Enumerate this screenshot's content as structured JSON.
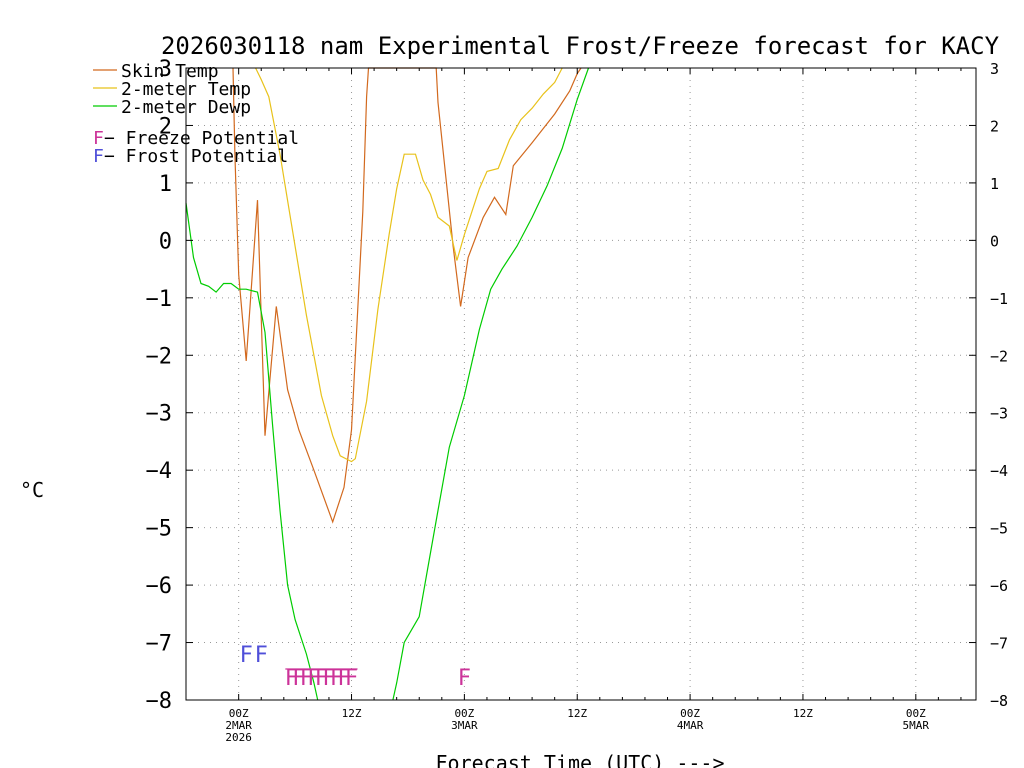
{
  "chart_data": {
    "type": "line",
    "title": "2026030118 nam Experimental Frost/Freeze forecast for KACY",
    "xlabel": "Forecast Time (UTC) --->",
    "ylabel": "°C",
    "xlim": [
      -7,
      98
    ],
    "ylim": [
      -8,
      3
    ],
    "yticks": [
      3,
      2,
      1,
      0,
      -1,
      -2,
      -3,
      -4,
      -5,
      -6,
      -7,
      -8
    ],
    "ytick_labels": [
      "3",
      "2",
      "1",
      "0",
      "−1",
      "−2",
      "−3",
      "−4",
      "−5",
      "−6",
      "−7",
      "−8"
    ],
    "xticks": [
      {
        "h": 0,
        "lines": [
          "00Z",
          "2MAR",
          "2026"
        ]
      },
      {
        "h": 15,
        "lines": [
          "12Z"
        ]
      },
      {
        "h": 30,
        "lines": [
          "00Z",
          "3MAR"
        ]
      },
      {
        "h": 45,
        "lines": [
          "12Z"
        ]
      },
      {
        "h": 60,
        "lines": [
          "00Z",
          "4MAR"
        ]
      },
      {
        "h": 75,
        "lines": [
          "12Z"
        ]
      },
      {
        "h": 90,
        "lines": [
          "00Z",
          "5MAR"
        ]
      }
    ],
    "grid": true,
    "series": [
      {
        "name": "Skin Temp",
        "color": "#d2691e",
        "points": [
          [
            -0.75,
            3
          ],
          [
            -0.5,
            1.5
          ],
          [
            0,
            -0.6
          ],
          [
            1,
            -2.1
          ],
          [
            2.5,
            0.7
          ],
          [
            3.5,
            -3.4
          ],
          [
            5,
            -1.15
          ],
          [
            6.5,
            -2.6
          ],
          [
            8,
            -3.3
          ],
          [
            10,
            -4
          ],
          [
            12.5,
            -4.9
          ],
          [
            14,
            -4.3
          ],
          [
            15,
            -3.3
          ],
          [
            16.5,
            0.5
          ],
          [
            17,
            2.5
          ],
          [
            17.25,
            3
          ],
          [
            26.25,
            3
          ],
          [
            26.5,
            2.4
          ],
          [
            28.5,
            -0.1
          ],
          [
            29.5,
            -1.15
          ],
          [
            30.5,
            -0.3
          ],
          [
            32.5,
            0.4
          ],
          [
            34,
            0.75
          ],
          [
            35.5,
            0.45
          ],
          [
            36.5,
            1.3
          ],
          [
            39,
            1.7
          ],
          [
            42,
            2.2
          ],
          [
            44,
            2.6
          ],
          [
            45,
            2.9
          ],
          [
            45.5,
            3
          ]
        ]
      },
      {
        "name": "2-meter Temp",
        "color": "#e8c21b",
        "points": [
          [
            2.25,
            3
          ],
          [
            3,
            2.8
          ],
          [
            4,
            2.5
          ],
          [
            5.5,
            1.5
          ],
          [
            7,
            0.3
          ],
          [
            9,
            -1.3
          ],
          [
            11,
            -2.7
          ],
          [
            12.5,
            -3.4
          ],
          [
            13.5,
            -3.75
          ],
          [
            15,
            -3.85
          ],
          [
            15.5,
            -3.8
          ],
          [
            17,
            -2.8
          ],
          [
            18.5,
            -1.2
          ],
          [
            20,
            0.1
          ],
          [
            21,
            0.9
          ],
          [
            22,
            1.5
          ],
          [
            23.5,
            1.5
          ],
          [
            24.5,
            1.05
          ],
          [
            25.5,
            0.8
          ],
          [
            26.5,
            0.4
          ],
          [
            28,
            0.25
          ],
          [
            29,
            -0.35
          ],
          [
            30,
            0.1
          ],
          [
            32,
            0.9
          ],
          [
            33,
            1.2
          ],
          [
            34.5,
            1.25
          ],
          [
            36,
            1.75
          ],
          [
            37.5,
            2.1
          ],
          [
            39,
            2.3
          ],
          [
            40.5,
            2.55
          ],
          [
            42,
            2.75
          ],
          [
            43,
            3
          ]
        ]
      },
      {
        "name": "2-meter Dewp",
        "color": "#00cc00",
        "points": [
          [
            -7,
            0.65
          ],
          [
            -6,
            -0.3
          ],
          [
            -5,
            -0.75
          ],
          [
            -4,
            -0.8
          ],
          [
            -3,
            -0.9
          ],
          [
            -2,
            -0.75
          ],
          [
            -1,
            -0.75
          ],
          [
            0,
            -0.85
          ],
          [
            1,
            -0.85
          ],
          [
            2.5,
            -0.9
          ],
          [
            3.5,
            -1.6
          ],
          [
            4.5,
            -3.2
          ],
          [
            5.5,
            -4.7
          ],
          [
            6.5,
            -6
          ],
          [
            7.5,
            -6.6
          ],
          [
            9,
            -7.2
          ],
          [
            10,
            -7.7
          ],
          [
            10.5,
            -8
          ]
        ]
      },
      {
        "name": "2-meter Dewp",
        "color": "#00cc00",
        "points": [
          [
            20.5,
            -8
          ],
          [
            21,
            -7.7
          ],
          [
            22,
            -7
          ],
          [
            24,
            -6.55
          ],
          [
            25,
            -5.8
          ],
          [
            26.5,
            -4.7
          ],
          [
            28,
            -3.6
          ],
          [
            30,
            -2.7
          ],
          [
            32,
            -1.55
          ],
          [
            33.5,
            -0.85
          ],
          [
            35,
            -0.5
          ],
          [
            37,
            -0.1
          ],
          [
            39,
            0.4
          ],
          [
            41,
            0.95
          ],
          [
            43,
            1.6
          ],
          [
            45,
            2.45
          ],
          [
            46.5,
            3
          ]
        ]
      }
    ],
    "legend": {
      "position": "top-left",
      "entries": [
        {
          "label": "Skin Temp",
          "color": "#d2691e"
        },
        {
          "label": "2-meter Temp",
          "color": "#e8c21b"
        },
        {
          "label": "2-meter Dewp",
          "color": "#00cc00"
        }
      ],
      "potential_entries": [
        {
          "marker": "F",
          "label": " − Freeze Potential",
          "color": "#cc3399"
        },
        {
          "marker": "F",
          "label": " − Frost Potential",
          "color": "#4f4fd9"
        }
      ]
    },
    "frost_markers": {
      "hours": [
        1,
        3
      ],
      "marker": "F",
      "color": "#4f4fd9",
      "y": -7.2
    },
    "freeze_markers": {
      "hours": [
        7,
        8,
        9,
        10,
        11,
        12,
        13,
        14,
        15,
        30
      ],
      "marker": "F",
      "color": "#cc3399",
      "y": -7.6
    }
  }
}
